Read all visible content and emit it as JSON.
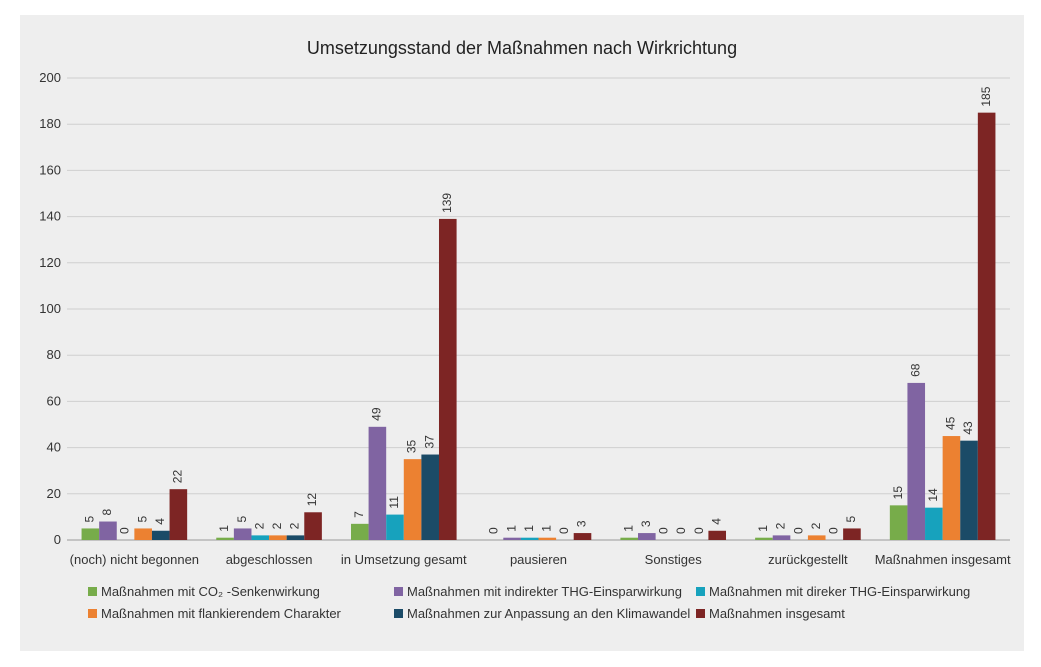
{
  "chart_data": {
    "type": "bar",
    "title": "Umsetzungsstand der Maßnahmen nach Wirkrichtung",
    "xlabel": "",
    "ylabel": "",
    "ylim": [
      0,
      200
    ],
    "yticks": [
      0,
      20,
      40,
      60,
      80,
      100,
      120,
      140,
      160,
      180,
      200
    ],
    "grid": true,
    "legend_position": "bottom",
    "categories": [
      "(noch) nicht begonnen",
      "abgeschlossen",
      "in Umsetzung gesamt",
      "pausieren",
      "Sonstiges",
      "zurückgestellt",
      "Maßnahmen insgesamt"
    ],
    "series": [
      {
        "name": "Maßnahmen mit CO₂ -Senkenwirkung",
        "color": "#77ac4a",
        "values": [
          5,
          1,
          7,
          0,
          1,
          1,
          15
        ]
      },
      {
        "name": "Maßnahmen mit indirekter THG-Einsparwirkung",
        "color": "#8064a2",
        "values": [
          8,
          5,
          49,
          1,
          3,
          2,
          68
        ]
      },
      {
        "name": "Maßnahmen mit direker THG-Einsparwirkung",
        "color": "#17a2bd",
        "values": [
          0,
          2,
          11,
          1,
          0,
          0,
          14
        ]
      },
      {
        "name": "Maßnahmen mit flankierendem Charakter",
        "color": "#ec8131",
        "values": [
          5,
          2,
          35,
          1,
          0,
          2,
          45
        ]
      },
      {
        "name": "Maßnahmen zur Anpassung an den Klimawandel",
        "color": "#1b4b67",
        "values": [
          4,
          2,
          37,
          0,
          0,
          0,
          43
        ]
      },
      {
        "name": "Maßnahmen insgesamt",
        "color": "#7d2524",
        "values": [
          22,
          12,
          139,
          3,
          4,
          5,
          185
        ]
      }
    ]
  }
}
